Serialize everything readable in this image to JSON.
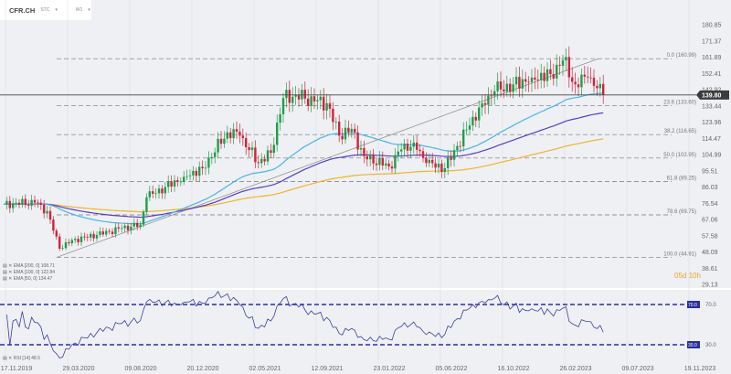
{
  "header": {
    "symbol": "CFR.CH",
    "suffix": "STC",
    "interval": "W1"
  },
  "colors": {
    "up": "#1e9e4a",
    "down": "#d3223a",
    "ema50": "#4ab4e6",
    "ema100": "#5b3cc4",
    "ema200": "#f0b429",
    "rsi": "#3a3f9e",
    "price_line": "#444444"
  },
  "legend": [
    "EMA [200, 0] 108.71",
    "EMA [100, 0] 122.84",
    "EMA [50, 0] 134.47"
  ],
  "rsi_label": "RSI [14] 48.5",
  "timer": "05d 10h",
  "current_price": "139.80",
  "chart_data": {
    "type": "candlestick",
    "price_ticks": [
      "180.85",
      "171.37",
      "161.89",
      "152.41",
      "142.92",
      "133.44",
      "123.96",
      "114.47",
      "104.99",
      "95.51",
      "86.03",
      "76.54",
      "67.06",
      "57.58",
      "48.09",
      "38.61",
      "29.13"
    ],
    "ylim": [
      29.13,
      180.85
    ],
    "date_ticks": [
      "17.11.2019",
      "29.03.2020",
      "09.08.2020",
      "20.12.2020",
      "02.05.2021",
      "12.09.2021",
      "23.01.2022",
      "05.06.2022",
      "16.10.2022",
      "26.02.2023",
      "09.07.2023",
      "19.11.2023"
    ],
    "close_anchors": [
      [
        0,
        76
      ],
      [
        10,
        77
      ],
      [
        14,
        72
      ],
      [
        18,
        50
      ],
      [
        22,
        55
      ],
      [
        30,
        58
      ],
      [
        38,
        62
      ],
      [
        44,
        64
      ],
      [
        46,
        80
      ],
      [
        52,
        86
      ],
      [
        58,
        92
      ],
      [
        64,
        97
      ],
      [
        72,
        118
      ],
      [
        76,
        116
      ],
      [
        82,
        100
      ],
      [
        86,
        106
      ],
      [
        90,
        138
      ],
      [
        94,
        140
      ],
      [
        100,
        136
      ],
      [
        104,
        135
      ],
      [
        108,
        116
      ],
      [
        112,
        120
      ],
      [
        116,
        104
      ],
      [
        124,
        98
      ],
      [
        128,
        108
      ],
      [
        132,
        112
      ],
      [
        136,
        100
      ],
      [
        142,
        97
      ],
      [
        146,
        110
      ],
      [
        150,
        122
      ],
      [
        154,
        135
      ],
      [
        158,
        142
      ],
      [
        164,
        146
      ],
      [
        170,
        150
      ],
      [
        176,
        152
      ],
      [
        180,
        160
      ],
      [
        184,
        146
      ],
      [
        188,
        150
      ],
      [
        193,
        139.8
      ]
    ],
    "fibonacci": [
      {
        "label": "0.0 (160.99)",
        "price": 160.99
      },
      {
        "label": "23.6 (133.60)",
        "price": 133.6
      },
      {
        "label": "38.2 (116.65)",
        "price": 116.65
      },
      {
        "label": "50.0 (102.95)",
        "price": 102.95
      },
      {
        "label": "61.8 (89.25)",
        "price": 89.25
      },
      {
        "label": "78.6 (69.75)",
        "price": 69.75
      },
      {
        "label": "100.0 (44.91)",
        "price": 44.91
      }
    ],
    "ema": [
      {
        "name": "EMA [200, 0]",
        "value": 108.71
      },
      {
        "name": "EMA [100, 0]",
        "value": 122.84
      },
      {
        "name": "EMA [50, 0]",
        "value": 134.47
      }
    ],
    "rsi": {
      "levels": [
        "70.0",
        "30.0"
      ],
      "last": 48.5
    }
  }
}
